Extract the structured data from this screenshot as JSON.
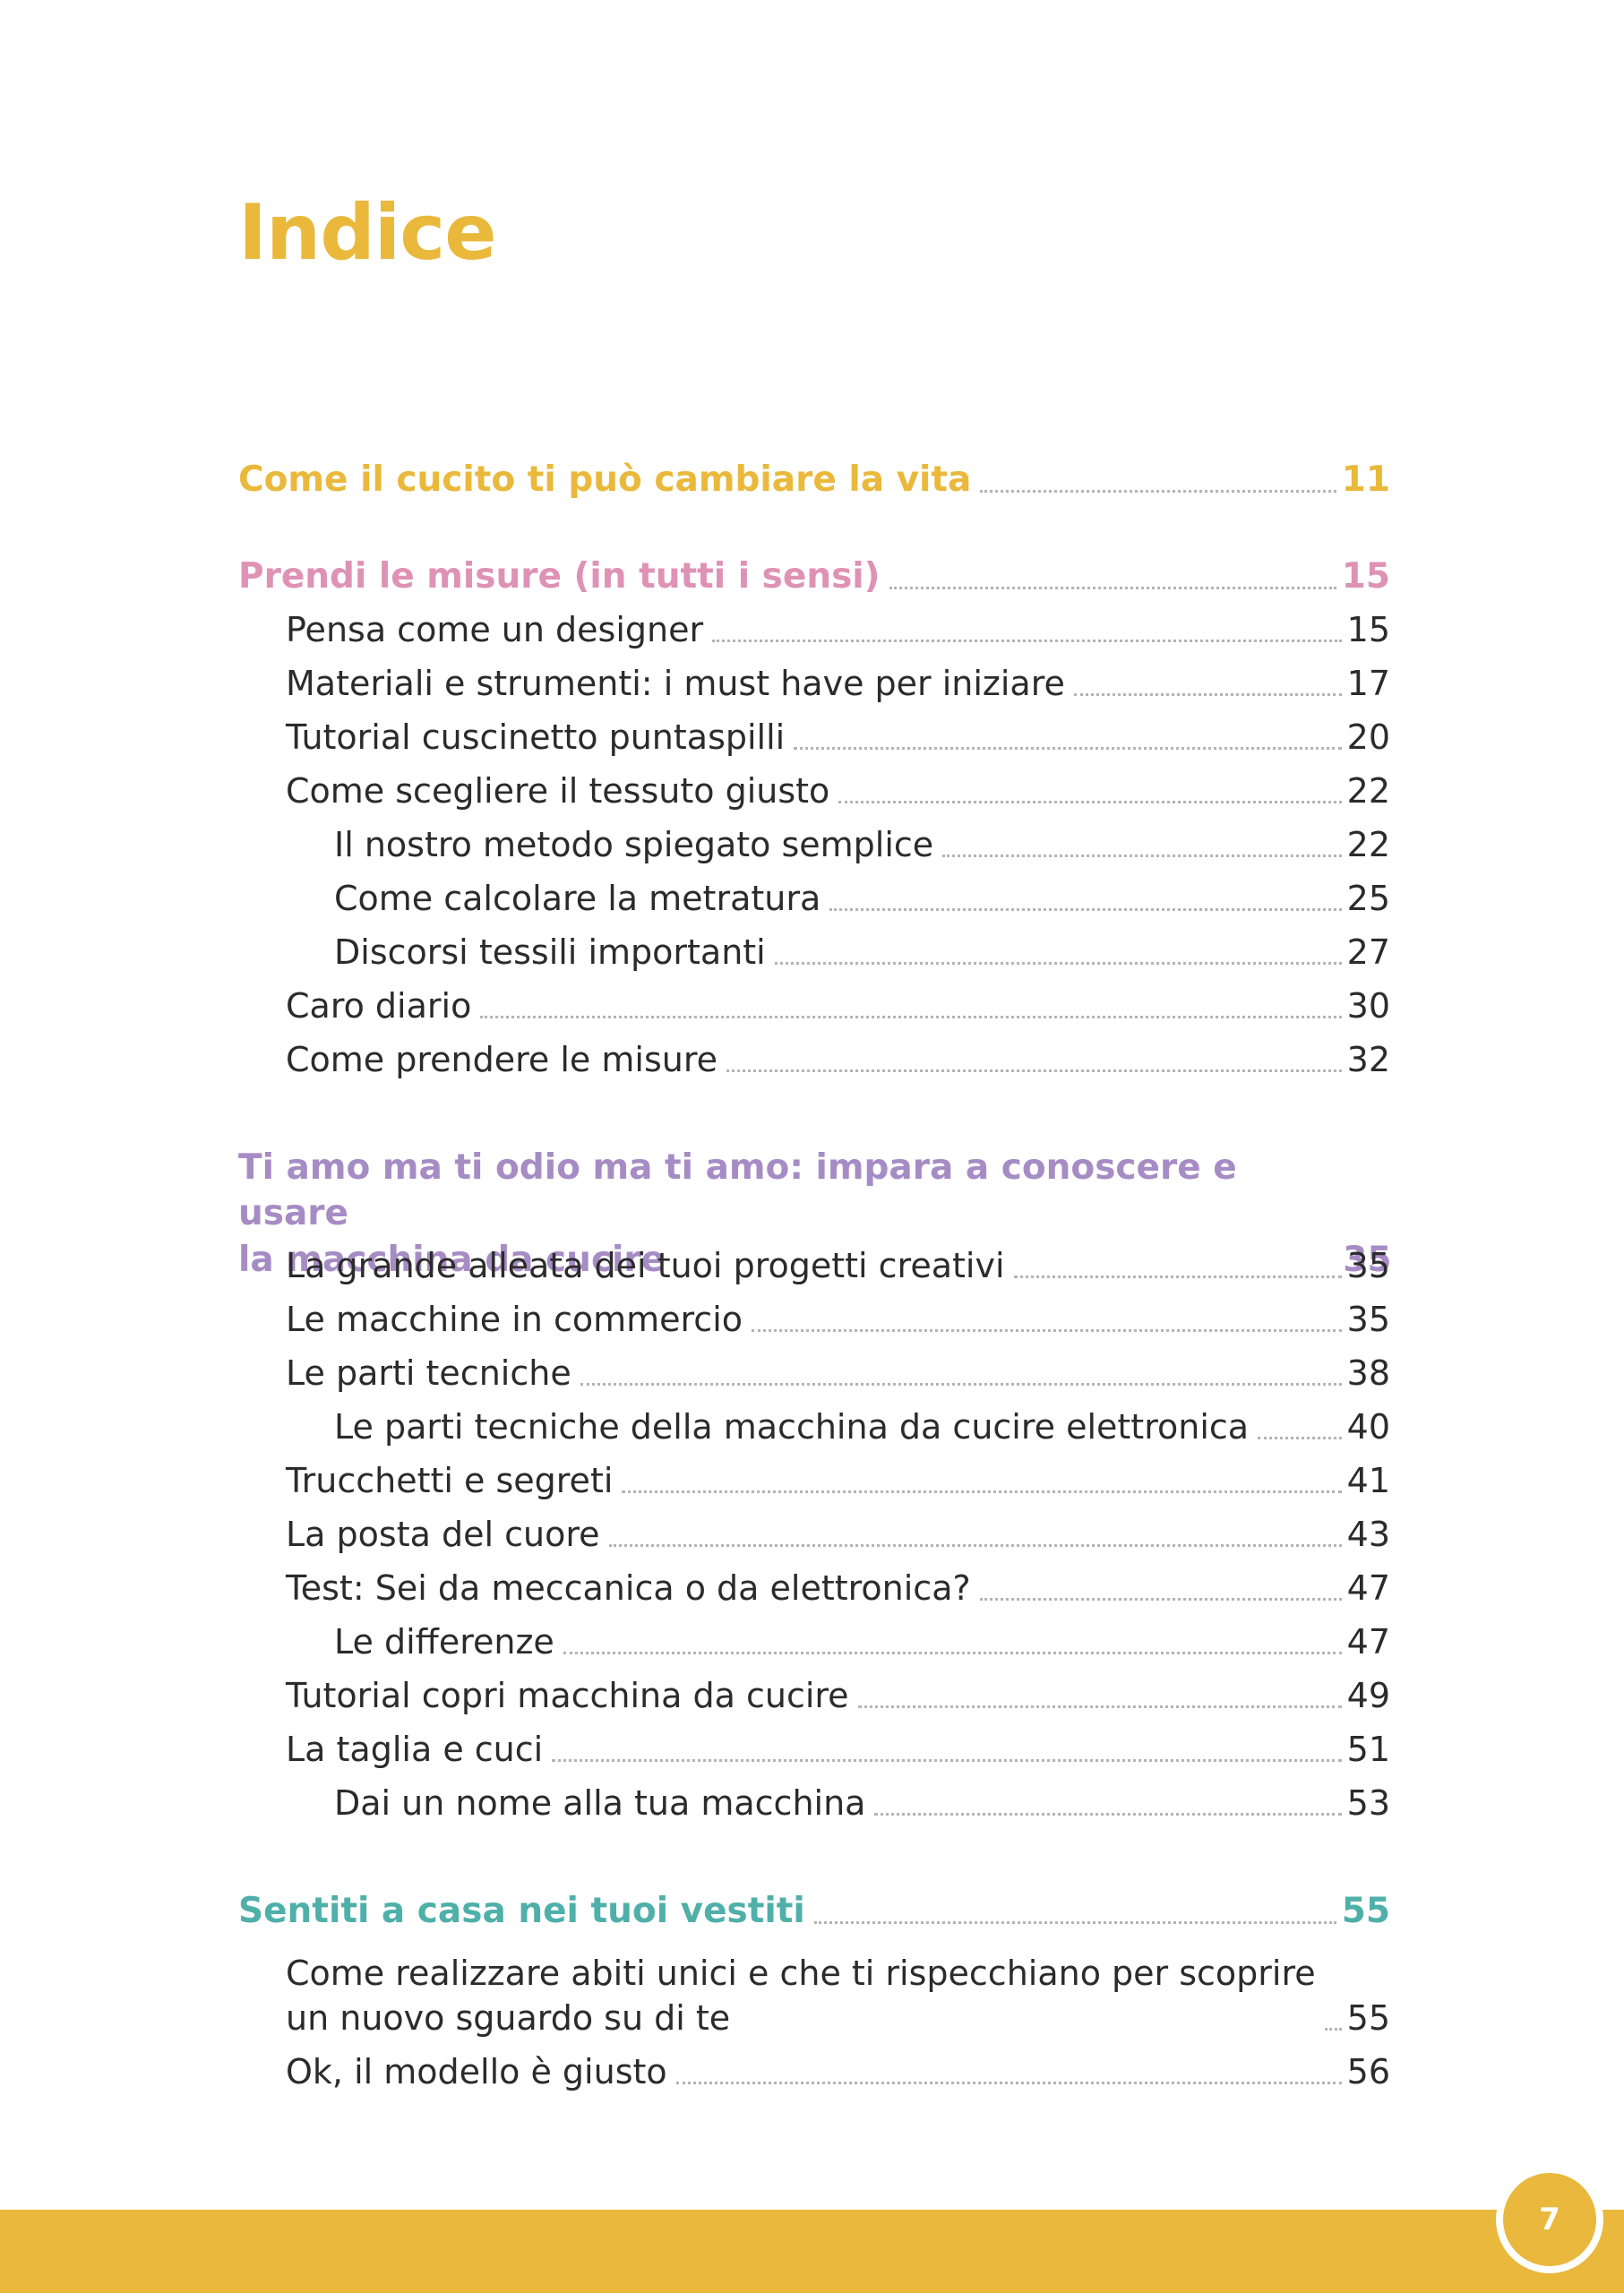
{
  "title": "Indice",
  "colors": {
    "title": "#eab93b",
    "section_1": "#eab93b",
    "section_2": "#de92b4",
    "section_3": "#a68cc4",
    "section_4": "#4fb0a9",
    "text": "#2b2b2b",
    "footer": "#e9b83c"
  },
  "toc": [
    {
      "label": "Come il cucito ti può cambiare la vita",
      "page": "11",
      "level": 0,
      "color": "#eab93b"
    },
    {
      "label": "Prendi le misure (in tutti i sensi)",
      "page": "15",
      "level": 0,
      "color": "#de92b4"
    },
    {
      "label": "Pensa come un designer",
      "page": "15",
      "level": 1
    },
    {
      "label": "Materiali e strumenti: i must have per iniziare",
      "page": "17",
      "level": 1
    },
    {
      "label": "Tutorial cuscinetto puntaspilli",
      "page": "20",
      "level": 1
    },
    {
      "label": "Come scegliere il tessuto giusto",
      "page": "22",
      "level": 1
    },
    {
      "label": "Il nostro metodo spiegato semplice",
      "page": "22",
      "level": 2
    },
    {
      "label": "Come calcolare la metratura",
      "page": "25",
      "level": 2
    },
    {
      "label": "Discorsi tessili importanti",
      "page": "27",
      "level": 2
    },
    {
      "label": "Caro diario",
      "page": "30",
      "level": 1
    },
    {
      "label": "Come prendere le misure",
      "page": "32",
      "level": 1
    },
    {
      "label": "Ti amo ma ti odio ma ti amo: impara a conoscere e usare\nla macchina da cucire",
      "page": "35",
      "level": 0,
      "color": "#a68cc4"
    },
    {
      "label": "La grande alleata dei tuoi progetti creativi",
      "page": "35",
      "level": 1
    },
    {
      "label": "Le macchine in commercio",
      "page": "35",
      "level": 1
    },
    {
      "label": "Le parti tecniche",
      "page": "38",
      "level": 1
    },
    {
      "label": "Le parti tecniche della macchina da cucire elettronica",
      "page": "40",
      "level": 2
    },
    {
      "label": "Trucchetti e segreti",
      "page": "41",
      "level": 1
    },
    {
      "label": "La posta del cuore",
      "page": "43",
      "level": 1
    },
    {
      "label": "Test: Sei da meccanica o da elettronica?",
      "page": "47",
      "level": 1
    },
    {
      "label": "Le differenze",
      "page": "47",
      "level": 2
    },
    {
      "label": "Tutorial copri macchina da cucire",
      "page": "49",
      "level": 1
    },
    {
      "label": "La taglia e cuci",
      "page": "51",
      "level": 1
    },
    {
      "label": "Dai un nome alla tua macchina",
      "page": "53",
      "level": 2
    },
    {
      "label": "Sentiti a casa nei tuoi vestiti",
      "page": "55",
      "level": 0,
      "color": "#4fb0a9"
    },
    {
      "label": "Come realizzare abiti unici e che ti rispecchiano per scoprire\nun nuovo sguardo su di te",
      "page": "55",
      "level": 1
    },
    {
      "label": "Ok, il modello è giusto",
      "page": "56",
      "level": 1
    }
  ],
  "page_number": "7"
}
